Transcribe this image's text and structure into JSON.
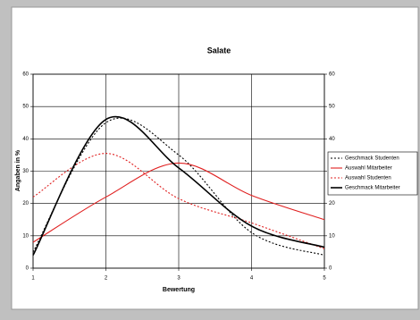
{
  "chart_data": {
    "type": "line",
    "title": "Salate",
    "x_label": "Bewertung",
    "y_label": "Angaben in %",
    "x": [
      1,
      2,
      3,
      4,
      5
    ],
    "xlim": [
      1,
      5
    ],
    "xticks": [
      1,
      2,
      3,
      4,
      5
    ],
    "ylim": [
      0,
      60
    ],
    "yticks": [
      0,
      10,
      20,
      30,
      40,
      50,
      60
    ],
    "y2lim": [
      0,
      60
    ],
    "y2ticks": [
      0,
      10,
      20,
      30,
      40,
      50,
      60
    ],
    "grid": true,
    "smooth": true,
    "legend": "right",
    "series": [
      {
        "name": "Geschmack Studenten",
        "color": "#000000",
        "dashed": true,
        "values": [
          5,
          45,
          35,
          11,
          4
        ]
      },
      {
        "name": "Auswahl Mitarbeiter",
        "color": "#e02020",
        "dashed": false,
        "values": [
          8,
          22,
          32.5,
          22.5,
          15
        ]
      },
      {
        "name": "Auswahl Studenten",
        "color": "#e02020",
        "dashed": true,
        "values": [
          22,
          35.5,
          21.5,
          14,
          6
        ]
      },
      {
        "name": "Geschmack Mitarbeiter",
        "color": "#000000",
        "dashed": false,
        "values": [
          4,
          46,
          31,
          13,
          6.5
        ]
      }
    ]
  }
}
